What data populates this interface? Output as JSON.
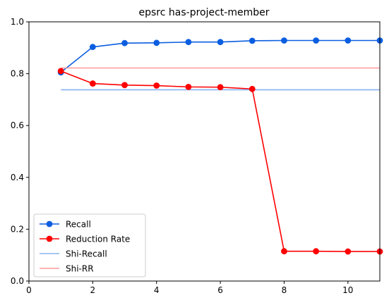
{
  "chart_data": {
    "type": "line",
    "title": "epsrc has-project-member",
    "xlabel": "",
    "ylabel": "",
    "xlim": [
      0,
      11
    ],
    "ylim": [
      0.0,
      1.0
    ],
    "x_ticks": [
      0,
      2,
      4,
      6,
      8,
      10
    ],
    "y_ticks": [
      0.0,
      0.2,
      0.4,
      0.6,
      0.8,
      1.0
    ],
    "x_tick_labels": [
      "0",
      "2",
      "4",
      "6",
      "8",
      "10"
    ],
    "y_tick_labels": [
      "0.0",
      "0.2",
      "0.4",
      "0.6",
      "0.8",
      "1.0"
    ],
    "grid": false,
    "legend_position": "lower-left",
    "series": [
      {
        "name": "Recall",
        "color": "#0b5ee0",
        "marker": "circle",
        "x": [
          1,
          2,
          3,
          4,
          5,
          6,
          7,
          8,
          9,
          10,
          11
        ],
        "y": [
          0.805,
          0.903,
          0.918,
          0.919,
          0.922,
          0.922,
          0.927,
          0.928,
          0.928,
          0.928,
          0.928
        ]
      },
      {
        "name": "Reduction Rate",
        "color": "#ff0000",
        "marker": "circle",
        "x": [
          1,
          2,
          3,
          4,
          5,
          6,
          7,
          8,
          9,
          10,
          11
        ],
        "y": [
          0.81,
          0.762,
          0.756,
          0.754,
          0.749,
          0.748,
          0.741,
          0.115,
          0.115,
          0.114,
          0.114
        ]
      },
      {
        "name": "Shi-Recall",
        "color": "#86b3f0",
        "marker": "none",
        "x": [
          1,
          11
        ],
        "y": [
          0.738,
          0.738
        ]
      },
      {
        "name": "Shi-RR",
        "color": "#ff9a9a",
        "marker": "none",
        "x": [
          1,
          11
        ],
        "y": [
          0.822,
          0.822
        ]
      }
    ]
  }
}
